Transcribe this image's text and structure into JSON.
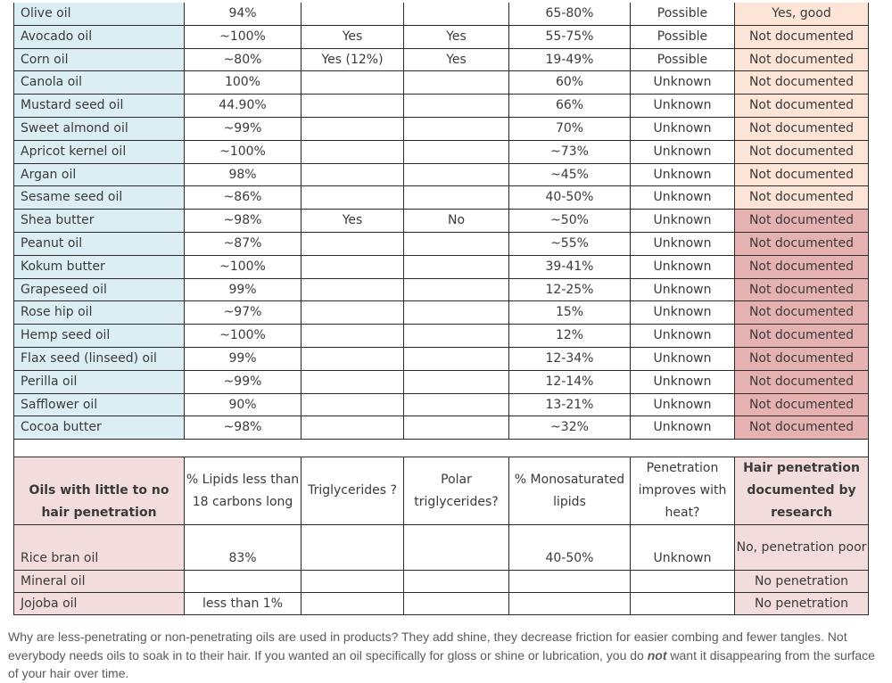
{
  "rows": [
    {
      "name": "Olive oil",
      "lipids": "94%",
      "trig": "",
      "polar": "",
      "mono": "65-80%",
      "heat": "Possible",
      "doc": "Yes, good",
      "group": "peach"
    },
    {
      "name": "Avocado oil",
      "lipids": "~100%",
      "trig": "Yes",
      "polar": "Yes",
      "mono": "55-75%",
      "heat": "Possible",
      "doc": "Not documented",
      "group": "peach"
    },
    {
      "name": "Corn oil",
      "lipids": "~80%",
      "trig": "Yes (12%)",
      "polar": "Yes",
      "mono": "19-49%",
      "heat": "Possible",
      "doc": "Not documented",
      "group": "peach"
    },
    {
      "name": "Canola oil",
      "lipids": "100%",
      "trig": "",
      "polar": "",
      "mono": "60%",
      "heat": "Unknown",
      "doc": "Not documented",
      "group": "peach"
    },
    {
      "name": "Mustard seed oil",
      "lipids": "44.90%",
      "trig": "",
      "polar": "",
      "mono": "66%",
      "heat": "Unknown",
      "doc": "Not documented",
      "group": "peach"
    },
    {
      "name": "Sweet almond oil",
      "lipids": "~99%",
      "trig": "",
      "polar": "",
      "mono": "70%",
      "heat": "Unknown",
      "doc": "Not documented",
      "group": "peach"
    },
    {
      "name": "Apricot kernel oil",
      "lipids": "~100%",
      "trig": "",
      "polar": "",
      "mono": "~73%",
      "heat": "Unknown",
      "doc": "Not documented",
      "group": "peach"
    },
    {
      "name": "Argan oil",
      "lipids": "98%",
      "trig": "",
      "polar": "",
      "mono": "~45%",
      "heat": "Unknown",
      "doc": "Not documented",
      "group": "peach"
    },
    {
      "name": "Sesame seed oil",
      "lipids": "~86%",
      "trig": "",
      "polar": "",
      "mono": "40-50%",
      "heat": "Unknown",
      "doc": "Not documented",
      "group": "peach"
    },
    {
      "name": "Shea butter",
      "lipids": "~98%",
      "trig": "Yes",
      "polar": "No",
      "mono": "~50%",
      "heat": "Unknown",
      "doc": "Not documented",
      "group": "red"
    },
    {
      "name": "Peanut oil",
      "lipids": "~87%",
      "trig": "",
      "polar": "",
      "mono": "~55%",
      "heat": "Unknown",
      "doc": "Not documented",
      "group": "red"
    },
    {
      "name": "Kokum butter",
      "lipids": "~100%",
      "trig": "",
      "polar": "",
      "mono": "39-41%",
      "heat": "Unknown",
      "doc": "Not documented",
      "group": "red"
    },
    {
      "name": "Grapeseed oil",
      "lipids": "99%",
      "trig": "",
      "polar": "",
      "mono": "12-25%",
      "heat": "Unknown",
      "doc": "Not documented",
      "group": "red"
    },
    {
      "name": "Rose hip oil",
      "lipids": "~97%",
      "trig": "",
      "polar": "",
      "mono": "15%",
      "heat": "Unknown",
      "doc": "Not documented",
      "group": "red"
    },
    {
      "name": "Hemp seed oil",
      "lipids": "~100%",
      "trig": "",
      "polar": "",
      "mono": "12%",
      "heat": "Unknown",
      "doc": "Not documented",
      "group": "red"
    },
    {
      "name": "Flax seed (linseed) oil",
      "lipids": "99%",
      "trig": "",
      "polar": "",
      "mono": "12-34%",
      "heat": "Unknown",
      "doc": "Not documented",
      "group": "red"
    },
    {
      "name": "Perilla oil",
      "lipids": "~99%",
      "trig": "",
      "polar": "",
      "mono": "12-14%",
      "heat": "Unknown",
      "doc": "Not documented",
      "group": "red"
    },
    {
      "name": "Safflower oil",
      "lipids": "90%",
      "trig": "",
      "polar": "",
      "mono": "13-21%",
      "heat": "Unknown",
      "doc": "Not documented",
      "group": "red"
    },
    {
      "name": "Cocoa butter",
      "lipids": "~98%",
      "trig": "",
      "polar": "",
      "mono": "~32%",
      "heat": "Unknown",
      "doc": "Not documented",
      "group": "red"
    }
  ],
  "second_header": {
    "name": "Oils with little to no hair penetration",
    "lipids": "% Lipids less than 18 carbons long",
    "trig": "Triglycerides ?",
    "polar": "Polar triglycerides?",
    "mono": "% Monosaturated lipids",
    "heat": "Penetration improves with heat?",
    "doc": "Hair penetration documented by research"
  },
  "second_rows": [
    {
      "name": "Rice bran oil",
      "lipids": "83%",
      "trig": "",
      "polar": "",
      "mono": "40-50%",
      "heat": "Unknown",
      "doc": "No, penetration poor"
    },
    {
      "name": "Mineral oil",
      "lipids": "",
      "trig": "",
      "polar": "",
      "mono": "",
      "heat": "",
      "doc": "No penetration"
    },
    {
      "name": "Jojoba oil",
      "lipids": "less than 1%",
      "trig": "",
      "polar": "",
      "mono": "",
      "heat": "",
      "doc": "No penetration"
    }
  ],
  "note": {
    "part1": "Why are less-penetrating or non-penetrating oils are used in products? They add shine, they decrease friction for easier combing and fewer tangles. Not everybody needs oils to soak in to their hair. If you wanted an oil specifically for gloss or shine or lubrication, you do ",
    "emphasis": "not",
    "part2": " want it disappearing from the surface of your hair over time."
  },
  "colors": {
    "name_column": "#dbeef3",
    "good_group": "#fce4d6",
    "undocumented_group": "#e6b1b1",
    "low_penetration_section": "#f2dcdc"
  }
}
